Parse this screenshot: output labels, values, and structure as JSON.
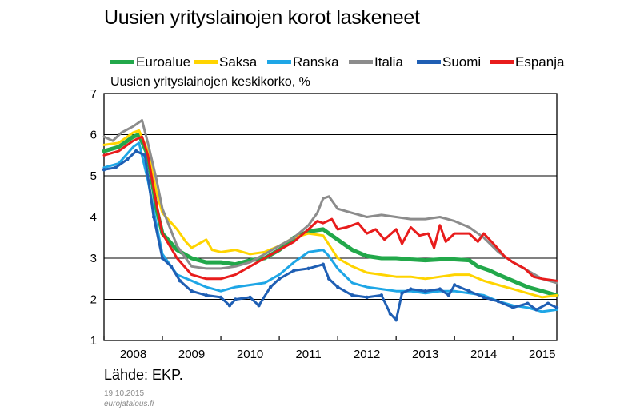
{
  "chart_data": {
    "type": "line",
    "title": "Uusien yrityslainojen korot laskeneet",
    "ylabel": "Uusien yrityslainojen keskikorko, %",
    "xlabel": "",
    "source": "Lähde: EKP.",
    "date": "19.10.2015",
    "site": "eurojatalous.fi",
    "ylim": [
      1,
      7
    ],
    "xlim": [
      2008.0,
      2015.75
    ],
    "yticks": [
      "1",
      "2",
      "3",
      "4",
      "5",
      "6",
      "7"
    ],
    "xticks": [
      "2008",
      "2009",
      "2010",
      "2011",
      "2012",
      "2013",
      "2014",
      "2015"
    ],
    "grid": "horizontal",
    "legend_position": "top",
    "series": [
      {
        "name": "Euroalue",
        "color": "#22a84a",
        "width": 5,
        "points": [
          [
            2008.0,
            5.6
          ],
          [
            2008.25,
            5.7
          ],
          [
            2008.5,
            5.95
          ],
          [
            2008.6,
            6.0
          ],
          [
            2008.75,
            5.5
          ],
          [
            2008.9,
            4.2
          ],
          [
            2009.0,
            3.6
          ],
          [
            2009.25,
            3.2
          ],
          [
            2009.5,
            3.0
          ],
          [
            2009.75,
            2.9
          ],
          [
            2010.0,
            2.9
          ],
          [
            2010.25,
            2.85
          ],
          [
            2010.5,
            2.95
          ],
          [
            2010.75,
            3.0
          ],
          [
            2011.0,
            3.2
          ],
          [
            2011.25,
            3.5
          ],
          [
            2011.5,
            3.65
          ],
          [
            2011.75,
            3.7
          ],
          [
            2011.85,
            3.6
          ],
          [
            2012.0,
            3.45
          ],
          [
            2012.25,
            3.2
          ],
          [
            2012.5,
            3.05
          ],
          [
            2012.75,
            3.0
          ],
          [
            2013.0,
            3.0
          ],
          [
            2013.25,
            2.97
          ],
          [
            2013.5,
            2.95
          ],
          [
            2013.75,
            2.97
          ],
          [
            2014.0,
            2.97
          ],
          [
            2014.25,
            2.95
          ],
          [
            2014.4,
            2.8
          ],
          [
            2014.6,
            2.7
          ],
          [
            2014.75,
            2.6
          ],
          [
            2015.0,
            2.45
          ],
          [
            2015.25,
            2.3
          ],
          [
            2015.5,
            2.2
          ],
          [
            2015.75,
            2.1
          ]
        ]
      },
      {
        "name": "Saksa",
        "color": "#ffd400",
        "width": 3,
        "points": [
          [
            2008.0,
            5.75
          ],
          [
            2008.25,
            5.8
          ],
          [
            2008.5,
            6.05
          ],
          [
            2008.6,
            6.1
          ],
          [
            2008.75,
            5.6
          ],
          [
            2008.9,
            4.6
          ],
          [
            2009.0,
            4.1
          ],
          [
            2009.25,
            3.7
          ],
          [
            2009.4,
            3.4
          ],
          [
            2009.5,
            3.25
          ],
          [
            2009.75,
            3.45
          ],
          [
            2009.85,
            3.2
          ],
          [
            2010.0,
            3.15
          ],
          [
            2010.25,
            3.2
          ],
          [
            2010.5,
            3.1
          ],
          [
            2010.75,
            3.15
          ],
          [
            2011.0,
            3.3
          ],
          [
            2011.25,
            3.5
          ],
          [
            2011.5,
            3.6
          ],
          [
            2011.75,
            3.55
          ],
          [
            2012.0,
            3.0
          ],
          [
            2012.25,
            2.8
          ],
          [
            2012.5,
            2.65
          ],
          [
            2012.75,
            2.6
          ],
          [
            2013.0,
            2.55
          ],
          [
            2013.25,
            2.55
          ],
          [
            2013.5,
            2.5
          ],
          [
            2013.75,
            2.55
          ],
          [
            2014.0,
            2.6
          ],
          [
            2014.25,
            2.6
          ],
          [
            2014.5,
            2.45
          ],
          [
            2014.75,
            2.35
          ],
          [
            2015.0,
            2.25
          ],
          [
            2015.25,
            2.15
          ],
          [
            2015.5,
            2.05
          ],
          [
            2015.75,
            2.1
          ]
        ]
      },
      {
        "name": "Ranska",
        "color": "#1ea6e6",
        "width": 3,
        "points": [
          [
            2008.0,
            5.2
          ],
          [
            2008.25,
            5.3
          ],
          [
            2008.5,
            5.7
          ],
          [
            2008.6,
            5.8
          ],
          [
            2008.75,
            4.9
          ],
          [
            2008.9,
            3.8
          ],
          [
            2009.0,
            3.1
          ],
          [
            2009.25,
            2.6
          ],
          [
            2009.5,
            2.45
          ],
          [
            2009.75,
            2.3
          ],
          [
            2010.0,
            2.2
          ],
          [
            2010.25,
            2.3
          ],
          [
            2010.5,
            2.35
          ],
          [
            2010.75,
            2.4
          ],
          [
            2011.0,
            2.6
          ],
          [
            2011.25,
            2.9
          ],
          [
            2011.5,
            3.15
          ],
          [
            2011.75,
            3.2
          ],
          [
            2011.85,
            3.05
          ],
          [
            2012.0,
            2.75
          ],
          [
            2012.25,
            2.4
          ],
          [
            2012.5,
            2.3
          ],
          [
            2012.75,
            2.25
          ],
          [
            2013.0,
            2.2
          ],
          [
            2013.25,
            2.2
          ],
          [
            2013.5,
            2.15
          ],
          [
            2013.75,
            2.2
          ],
          [
            2014.0,
            2.2
          ],
          [
            2014.25,
            2.15
          ],
          [
            2014.5,
            2.1
          ],
          [
            2014.75,
            1.95
          ],
          [
            2015.0,
            1.85
          ],
          [
            2015.25,
            1.8
          ],
          [
            2015.5,
            1.7
          ],
          [
            2015.75,
            1.75
          ]
        ]
      },
      {
        "name": "Italia",
        "color": "#8c8c8c",
        "width": 3,
        "points": [
          [
            2008.0,
            5.95
          ],
          [
            2008.15,
            5.85
          ],
          [
            2008.3,
            6.05
          ],
          [
            2008.5,
            6.2
          ],
          [
            2008.65,
            6.35
          ],
          [
            2008.75,
            5.8
          ],
          [
            2008.9,
            4.9
          ],
          [
            2009.0,
            4.2
          ],
          [
            2009.25,
            3.3
          ],
          [
            2009.5,
            2.8
          ],
          [
            2009.75,
            2.75
          ],
          [
            2010.0,
            2.75
          ],
          [
            2010.25,
            2.8
          ],
          [
            2010.5,
            2.9
          ],
          [
            2010.75,
            3.1
          ],
          [
            2011.0,
            3.3
          ],
          [
            2011.25,
            3.5
          ],
          [
            2011.5,
            3.8
          ],
          [
            2011.65,
            4.1
          ],
          [
            2011.75,
            4.45
          ],
          [
            2011.85,
            4.5
          ],
          [
            2012.0,
            4.2
          ],
          [
            2012.25,
            4.1
          ],
          [
            2012.5,
            4.0
          ],
          [
            2012.75,
            4.05
          ],
          [
            2013.0,
            4.0
          ],
          [
            2013.25,
            3.95
          ],
          [
            2013.5,
            3.95
          ],
          [
            2013.75,
            4.0
          ],
          [
            2014.0,
            3.9
          ],
          [
            2014.25,
            3.75
          ],
          [
            2014.5,
            3.5
          ],
          [
            2014.75,
            3.15
          ],
          [
            2015.0,
            2.9
          ],
          [
            2015.25,
            2.7
          ],
          [
            2015.5,
            2.5
          ],
          [
            2015.75,
            2.4
          ]
        ]
      },
      {
        "name": "Suomi",
        "color": "#1f5fb4",
        "width": 3,
        "points": [
          [
            2008.0,
            5.15
          ],
          [
            2008.2,
            5.2
          ],
          [
            2008.4,
            5.4
          ],
          [
            2008.55,
            5.6
          ],
          [
            2008.7,
            5.5
          ],
          [
            2008.85,
            4.0
          ],
          [
            2009.0,
            3.0
          ],
          [
            2009.15,
            2.8
          ],
          [
            2009.3,
            2.45
          ],
          [
            2009.5,
            2.2
          ],
          [
            2009.75,
            2.1
          ],
          [
            2010.0,
            2.05
          ],
          [
            2010.15,
            1.85
          ],
          [
            2010.25,
            2.0
          ],
          [
            2010.5,
            2.05
          ],
          [
            2010.65,
            1.85
          ],
          [
            2010.85,
            2.3
          ],
          [
            2011.0,
            2.5
          ],
          [
            2011.25,
            2.7
          ],
          [
            2011.5,
            2.75
          ],
          [
            2011.75,
            2.85
          ],
          [
            2011.85,
            2.5
          ],
          [
            2012.0,
            2.3
          ],
          [
            2012.25,
            2.1
          ],
          [
            2012.5,
            2.05
          ],
          [
            2012.75,
            2.1
          ],
          [
            2012.9,
            1.65
          ],
          [
            2013.0,
            1.5
          ],
          [
            2013.1,
            2.15
          ],
          [
            2013.25,
            2.25
          ],
          [
            2013.5,
            2.2
          ],
          [
            2013.75,
            2.25
          ],
          [
            2013.9,
            2.1
          ],
          [
            2014.0,
            2.35
          ],
          [
            2014.25,
            2.2
          ],
          [
            2014.5,
            2.05
          ],
          [
            2014.75,
            1.95
          ],
          [
            2015.0,
            1.8
          ],
          [
            2015.25,
            1.9
          ],
          [
            2015.4,
            1.75
          ],
          [
            2015.6,
            1.9
          ],
          [
            2015.75,
            1.8
          ]
        ]
      },
      {
        "name": "Espanja",
        "color": "#e81c1c",
        "width": 3,
        "points": [
          [
            2008.0,
            5.5
          ],
          [
            2008.25,
            5.6
          ],
          [
            2008.5,
            5.85
          ],
          [
            2008.65,
            5.95
          ],
          [
            2008.75,
            5.5
          ],
          [
            2008.9,
            4.3
          ],
          [
            2009.0,
            3.6
          ],
          [
            2009.25,
            3.0
          ],
          [
            2009.5,
            2.6
          ],
          [
            2009.75,
            2.5
          ],
          [
            2010.0,
            2.5
          ],
          [
            2010.25,
            2.6
          ],
          [
            2010.5,
            2.8
          ],
          [
            2010.75,
            3.0
          ],
          [
            2011.0,
            3.2
          ],
          [
            2011.25,
            3.4
          ],
          [
            2011.5,
            3.7
          ],
          [
            2011.65,
            3.9
          ],
          [
            2011.75,
            3.85
          ],
          [
            2011.9,
            3.95
          ],
          [
            2012.0,
            3.7
          ],
          [
            2012.15,
            3.75
          ],
          [
            2012.35,
            3.85
          ],
          [
            2012.5,
            3.6
          ],
          [
            2012.65,
            3.7
          ],
          [
            2012.8,
            3.45
          ],
          [
            2013.0,
            3.7
          ],
          [
            2013.1,
            3.35
          ],
          [
            2013.25,
            3.75
          ],
          [
            2013.4,
            3.55
          ],
          [
            2013.55,
            3.6
          ],
          [
            2013.65,
            3.25
          ],
          [
            2013.75,
            3.8
          ],
          [
            2013.85,
            3.4
          ],
          [
            2014.0,
            3.6
          ],
          [
            2014.25,
            3.6
          ],
          [
            2014.4,
            3.4
          ],
          [
            2014.5,
            3.6
          ],
          [
            2014.7,
            3.3
          ],
          [
            2014.85,
            3.05
          ],
          [
            2015.0,
            2.9
          ],
          [
            2015.2,
            2.75
          ],
          [
            2015.35,
            2.55
          ],
          [
            2015.5,
            2.5
          ],
          [
            2015.75,
            2.45
          ]
        ]
      }
    ]
  },
  "colors": {
    "axis": "#000000",
    "grid": "#000000",
    "date_text": "#8a8a8a"
  }
}
